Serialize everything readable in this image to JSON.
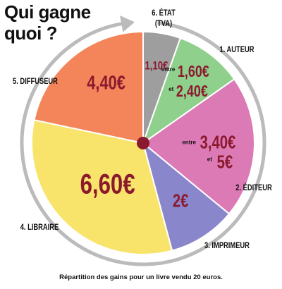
{
  "title_line1": "Qui gagne",
  "title_line2": "quoi ?",
  "caption": "Répartition des gains pour un livre vendu 20 euros.",
  "chart_data": {
    "type": "pie",
    "title": "Qui gagne quoi ?",
    "subtitle": "Répartition des gains pour un livre vendu 20 euros.",
    "currency": "€",
    "start": "top, clockwise",
    "slices": [
      {
        "key": "etat",
        "label": "6. ÉTAT",
        "label_line2": "(TVA)",
        "value": 1.1,
        "display": "1,10",
        "color": "#9e9e9e"
      },
      {
        "key": "auteur",
        "label": "1. AUTEUR",
        "value": 2.0,
        "range_prefix": "entre",
        "range_joiner": "et",
        "range_low": "1,60",
        "range_high": "2,40",
        "color": "#8fd08c"
      },
      {
        "key": "editeur",
        "label": "2. ÉDITEUR",
        "value": 4.2,
        "range_prefix": "entre",
        "range_joiner": "et",
        "range_low": "3,40",
        "range_high": "5",
        "color": "#dc7ab6"
      },
      {
        "key": "imprimeur",
        "label": "3. IMPRIMEUR",
        "value": 2.0,
        "display": "2",
        "color": "#8a86cc"
      },
      {
        "key": "libraire",
        "label": "4. LIBRAIRE",
        "value": 6.6,
        "display": "6,60",
        "color": "#f8e46a"
      },
      {
        "key": "diffuseur",
        "label": "5. DIFFUSEUR",
        "value": 4.4,
        "display": "4,40",
        "color": "#f4855a"
      }
    ],
    "colors": {
      "value_text": "#8b1a2e",
      "label_text": "#111111",
      "center_dot": "#8b1a2e",
      "ring": "#bbbbbb",
      "slice_border": "#ffffff"
    }
  }
}
